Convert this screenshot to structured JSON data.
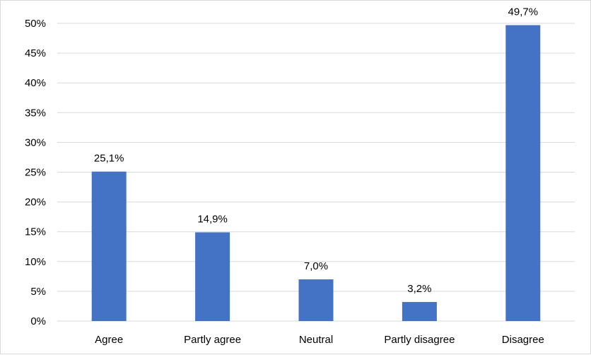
{
  "chart_data": {
    "type": "bar",
    "title": "",
    "xlabel": "",
    "ylabel": "",
    "categories": [
      "Agree",
      "Partly agree",
      "Neutral",
      "Partly disagree",
      "Disagree"
    ],
    "values": [
      25.1,
      14.9,
      7.0,
      3.2,
      49.7
    ],
    "data_labels": [
      "25,1%",
      "14,9%",
      "7,0%",
      "3,2%",
      "49,7%"
    ],
    "ylim": [
      0,
      50
    ],
    "y_ticks": [
      0,
      5,
      10,
      15,
      20,
      25,
      30,
      35,
      40,
      45,
      50
    ],
    "y_tick_labels": [
      "0%",
      "5%",
      "10%",
      "15%",
      "20%",
      "25%",
      "30%",
      "35%",
      "40%",
      "45%",
      "50%"
    ],
    "grid": true,
    "legend": "none",
    "bar_color": "#4472c4",
    "grid_color": "#d9d9d9"
  }
}
